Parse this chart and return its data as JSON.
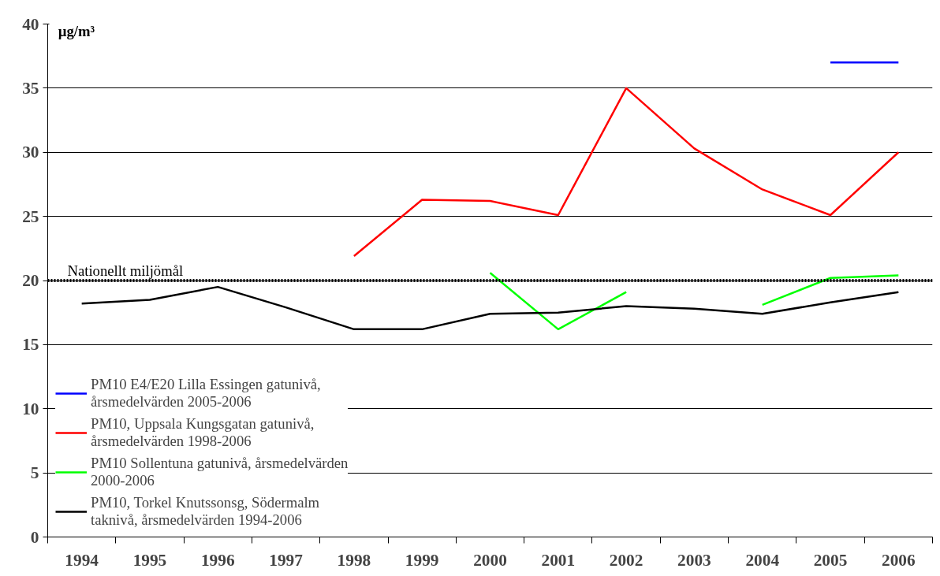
{
  "chart_data": {
    "type": "line",
    "ylabel": "µg/m³",
    "categories": [
      "1994",
      "1995",
      "1996",
      "1997",
      "1998",
      "1999",
      "2000",
      "2001",
      "2002",
      "2003",
      "2004",
      "2005",
      "2006"
    ],
    "series": [
      {
        "name": "PM10 E4/E20 Lilla Essingen gatunivå, årsmedelvärden 2005-2006",
        "color": "#0000ff",
        "values": [
          null,
          null,
          null,
          null,
          null,
          null,
          null,
          null,
          null,
          null,
          null,
          37.0,
          37.0
        ]
      },
      {
        "name": "PM10, Uppsala Kungsgatan gatunivå, årsmedelvärden 1998-2006",
        "color": "#ff0000",
        "values": [
          null,
          null,
          null,
          null,
          21.9,
          26.3,
          26.2,
          25.1,
          35.0,
          30.3,
          27.1,
          25.1,
          30.0
        ]
      },
      {
        "name": "PM10 Sollentuna gatunivå, årsmedelvärden 2000-2006",
        "color": "#00ff00",
        "values": [
          null,
          null,
          null,
          null,
          null,
          null,
          20.6,
          16.2,
          19.1,
          null,
          18.1,
          20.2,
          20.4
        ]
      },
      {
        "name": "PM10, Torkel Knutssonsg, Södermalm taknivå, årsmedelvärden 1994-2006",
        "color": "#000000",
        "values": [
          18.2,
          18.5,
          19.5,
          17.9,
          16.2,
          16.2,
          17.4,
          17.5,
          18.0,
          17.8,
          17.4,
          18.3,
          19.1
        ]
      }
    ],
    "ylim": [
      0,
      40
    ],
    "yticks": [
      0,
      5,
      10,
      15,
      20,
      25,
      30,
      35,
      40
    ],
    "ref_lines": [
      {
        "axis": "y",
        "value": 20,
        "label": "Nationellt miljömål",
        "color": "#000000",
        "line_style": "dotted"
      }
    ],
    "grid": "y",
    "legend": "bottom left",
    "marker": "none",
    "line_style": "solid"
  }
}
